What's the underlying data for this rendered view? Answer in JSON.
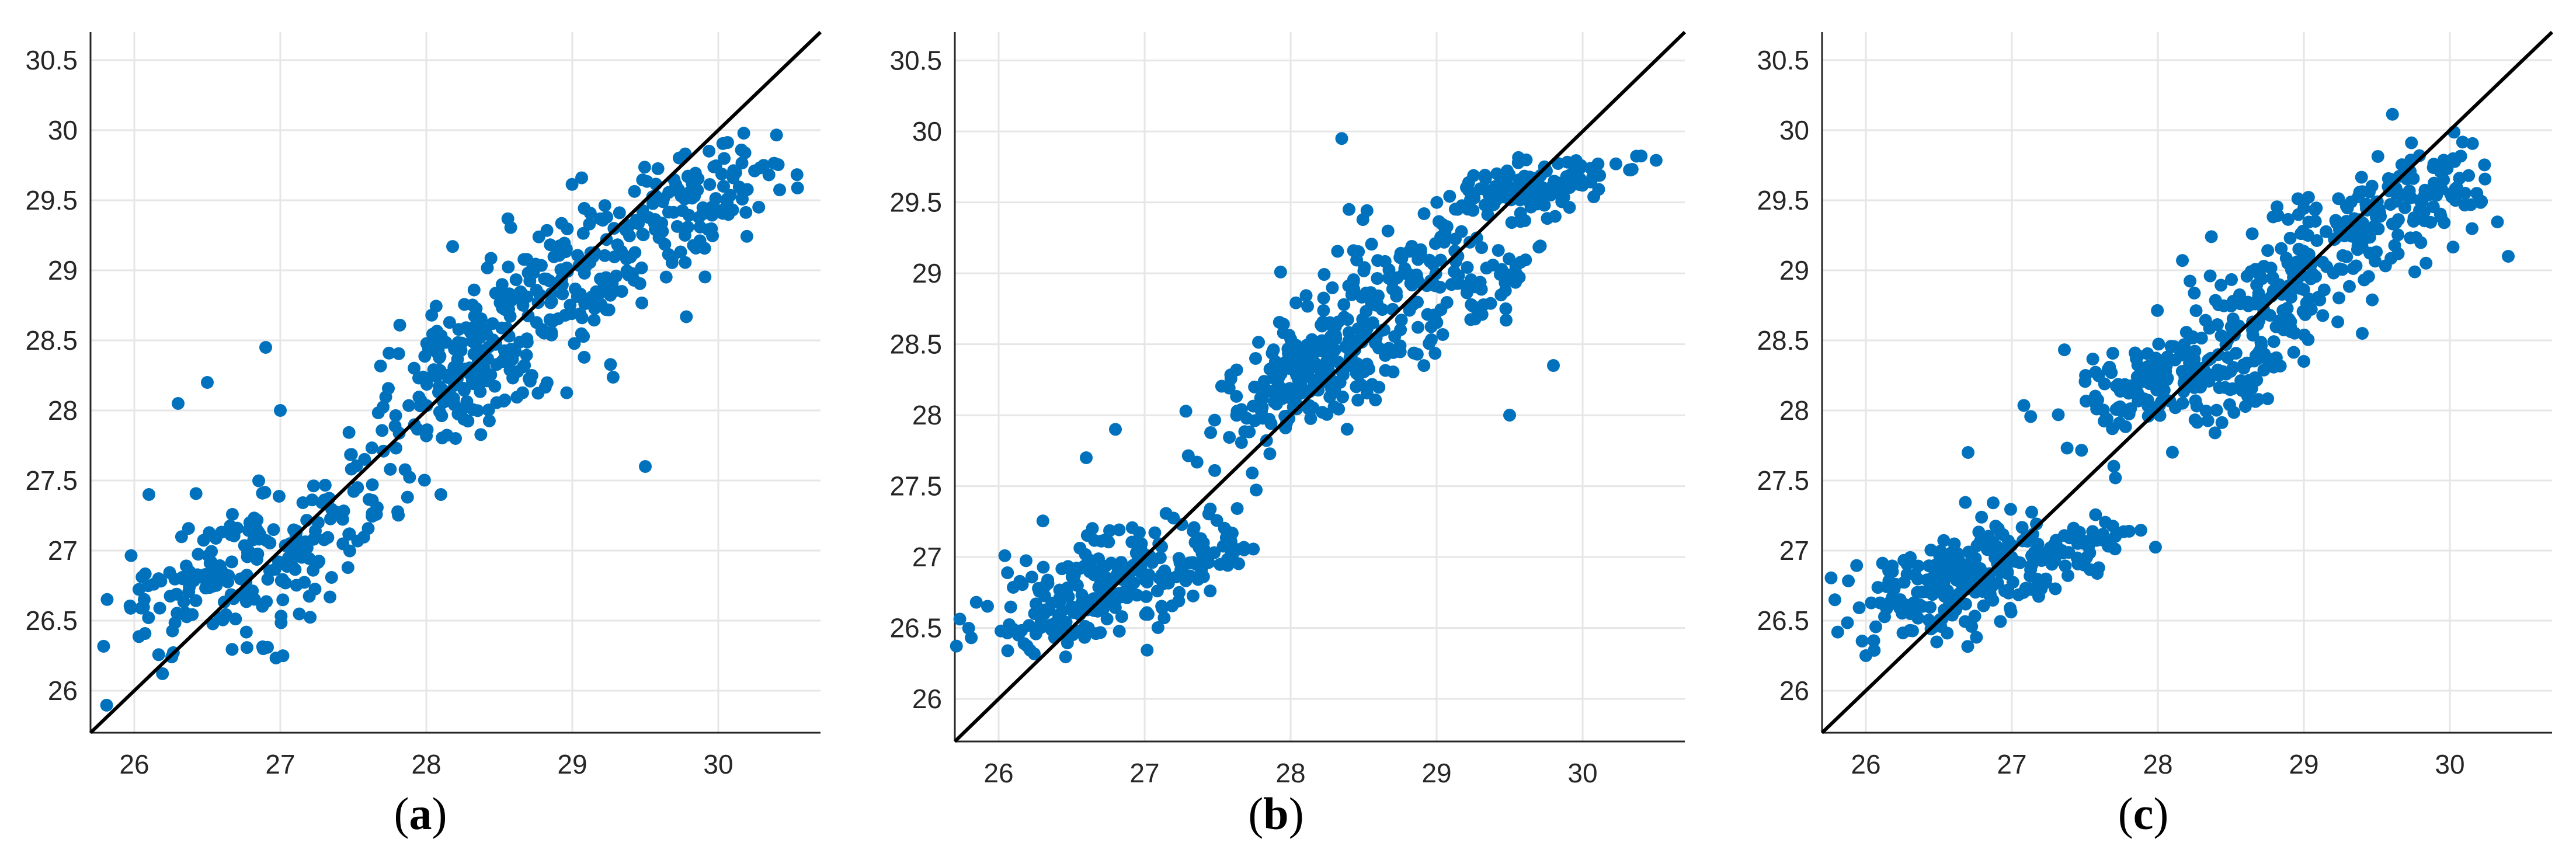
{
  "colors": {
    "points": "#0072BD",
    "identity_line": "#000000",
    "grid": "#e6e6e6",
    "axis": "#262626"
  },
  "chart_data": [
    {
      "type": "scatter",
      "panel_label": "a",
      "title": "",
      "xlabel": "",
      "ylabel": "",
      "xlim": [
        25.7,
        30.7
      ],
      "ylim": [
        25.7,
        30.7
      ],
      "xticks": [
        26,
        27,
        28,
        29,
        30
      ],
      "yticks": [
        26,
        26.5,
        27,
        27.5,
        28,
        28.5,
        29,
        29.5,
        30,
        30.5
      ],
      "xtick_labels": [
        "26",
        "27",
        "28",
        "29",
        "30"
      ],
      "ytick_labels": [
        "26",
        "26.5",
        "27",
        "27.5",
        "28",
        "28.5",
        "29",
        "29.5",
        "30",
        "30.5"
      ],
      "grid": true,
      "reference_line": "y = x",
      "clusters": [
        {
          "cx": 26.65,
          "cy": 26.85,
          "sx": 0.42,
          "sy": 0.28,
          "n": 170
        },
        {
          "cx": 27.4,
          "cy": 27.1,
          "sx": 0.22,
          "sy": 0.25,
          "n": 50
        },
        {
          "cx": 28.3,
          "cy": 28.3,
          "sx": 0.35,
          "sy": 0.3,
          "n": 170
        },
        {
          "cx": 29.05,
          "cy": 29.0,
          "sx": 0.45,
          "sy": 0.35,
          "n": 170
        },
        {
          "cx": 29.9,
          "cy": 29.5,
          "sx": 0.3,
          "sy": 0.22,
          "n": 90
        }
      ],
      "outliers": [
        [
          26.3,
          28.05
        ],
        [
          26.5,
          28.2
        ],
        [
          26.9,
          28.45
        ],
        [
          27.0,
          28.0
        ],
        [
          28.1,
          27.4
        ],
        [
          29.5,
          27.6
        ],
        [
          28.2,
          27.8
        ],
        [
          26.1,
          27.4
        ]
      ]
    },
    {
      "type": "scatter",
      "panel_label": "b",
      "title": "",
      "xlabel": "",
      "ylabel": "",
      "xlim": [
        25.7,
        30.7
      ],
      "ylim": [
        25.7,
        30.7
      ],
      "xticks": [
        26,
        27,
        28,
        29,
        30
      ],
      "yticks": [
        26,
        26.5,
        27,
        27.5,
        28,
        28.5,
        29,
        29.5,
        30,
        30.5
      ],
      "xtick_labels": [
        "26",
        "27",
        "28",
        "29",
        "30"
      ],
      "ytick_labels": [
        "26",
        "26.5",
        "27",
        "27.5",
        "28",
        "28.5",
        "29",
        "29.5",
        "30",
        "30.5"
      ],
      "grid": true,
      "reference_line": "y = x",
      "clusters": [
        {
          "cx": 26.7,
          "cy": 26.8,
          "sx": 0.38,
          "sy": 0.22,
          "n": 230
        },
        {
          "cx": 27.4,
          "cy": 27.0,
          "sx": 0.18,
          "sy": 0.15,
          "n": 40
        },
        {
          "cx": 28.1,
          "cy": 28.25,
          "sx": 0.3,
          "sy": 0.22,
          "n": 170
        },
        {
          "cx": 28.65,
          "cy": 28.8,
          "sx": 0.35,
          "sy": 0.35,
          "n": 160
        },
        {
          "cx": 29.35,
          "cy": 28.95,
          "sx": 0.22,
          "sy": 0.2,
          "n": 50
        },
        {
          "cx": 29.7,
          "cy": 29.62,
          "sx": 0.35,
          "sy": 0.1,
          "n": 130
        }
      ],
      "outliers": [
        [
          28.35,
          29.95
        ],
        [
          26.8,
          27.9
        ],
        [
          26.6,
          27.7
        ],
        [
          29.5,
          28.0
        ],
        [
          29.8,
          28.35
        ],
        [
          28.4,
          29.45
        ]
      ]
    },
    {
      "type": "scatter",
      "panel_label": "c",
      "title": "",
      "xlabel": "",
      "ylabel": "",
      "xlim": [
        25.7,
        30.7
      ],
      "ylim": [
        25.7,
        30.7
      ],
      "xticks": [
        26,
        27,
        28,
        29,
        30
      ],
      "yticks": [
        26,
        26.5,
        27,
        27.5,
        28,
        28.5,
        29,
        29.5,
        30,
        30.5
      ],
      "xtick_labels": [
        "26",
        "27",
        "28",
        "29",
        "30"
      ],
      "ytick_labels": [
        "26",
        "26.5",
        "27",
        "27.5",
        "28",
        "28.5",
        "29",
        "29.5",
        "30",
        "30.5"
      ],
      "grid": true,
      "reference_line": "y = x",
      "clusters": [
        {
          "cx": 26.7,
          "cy": 26.8,
          "sx": 0.42,
          "sy": 0.22,
          "n": 240
        },
        {
          "cx": 27.5,
          "cy": 27.05,
          "sx": 0.15,
          "sy": 0.12,
          "n": 35
        },
        {
          "cx": 28.05,
          "cy": 28.2,
          "sx": 0.35,
          "sy": 0.2,
          "n": 150
        },
        {
          "cx": 28.6,
          "cy": 28.2,
          "sx": 0.2,
          "sy": 0.25,
          "n": 50
        },
        {
          "cx": 28.95,
          "cy": 29.0,
          "sx": 0.35,
          "sy": 0.3,
          "n": 150
        },
        {
          "cx": 29.7,
          "cy": 29.45,
          "sx": 0.35,
          "sy": 0.25,
          "n": 140
        }
      ],
      "outliers": [
        [
          26.7,
          27.7
        ],
        [
          26.0,
          26.25
        ],
        [
          30.4,
          29.1
        ],
        [
          29.4,
          28.55
        ],
        [
          29.0,
          28.35
        ]
      ]
    }
  ]
}
